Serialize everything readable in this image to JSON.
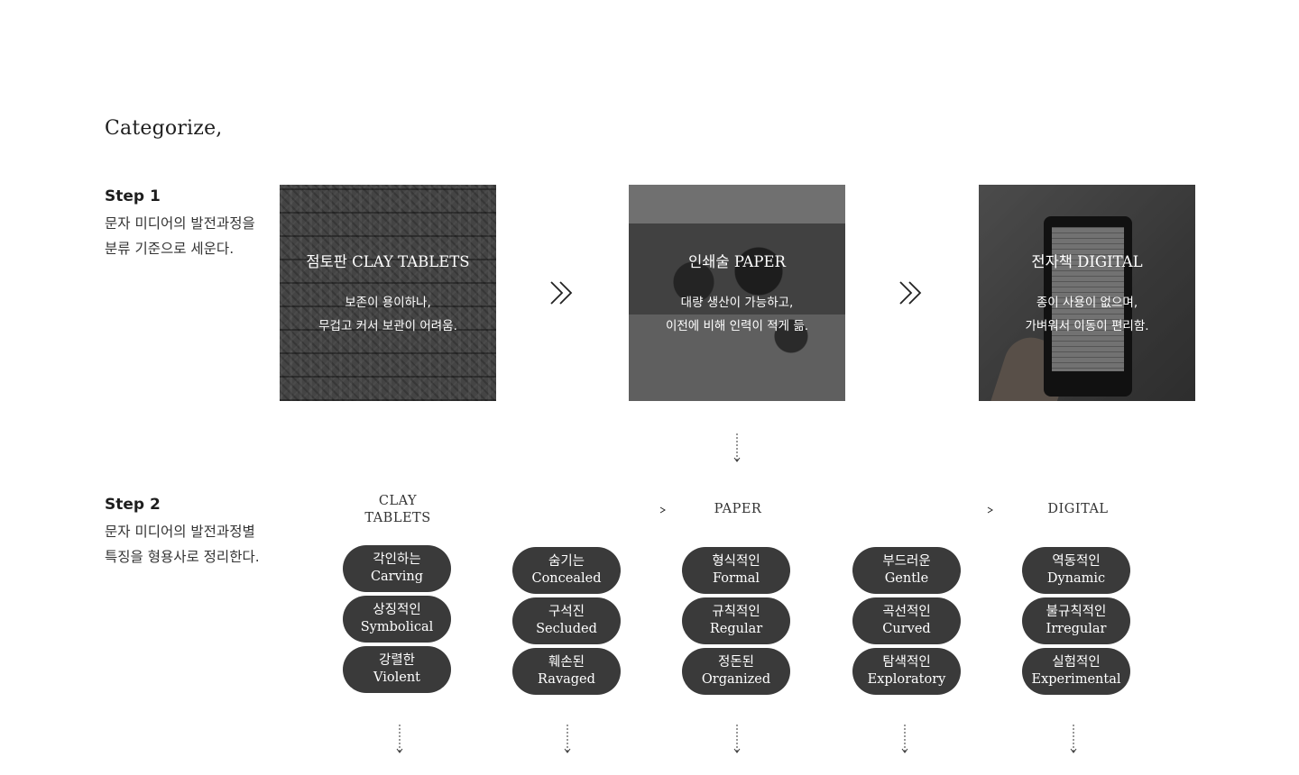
{
  "title": "Categorize,",
  "step1": {
    "label": "Step 1",
    "desc": "문자 미디어의 발전과정을\n분류 기준으로 세운다."
  },
  "step2": {
    "label": "Step 2",
    "desc": "문자 미디어의 발전과정별\n특징을 형용사로 정리한다."
  },
  "media": [
    {
      "name": "점토판 CLAY TABLETS",
      "desc": "보존이 용이하나,\n무겁고 커서 보관이 어려움."
    },
    {
      "name": "인쇄술 PAPER",
      "desc": "대량 생산이 가능하고,\n이전에 비해 인력이 적게 듦."
    },
    {
      "name": "전자책 DIGITAL",
      "desc": "종이 사용이 없으며,\n가벼워서 이동이 편리함."
    }
  ],
  "timeline": {
    "clay_line1": "CLAY",
    "clay_line2": "TABLETS",
    "paper": "PAPER",
    "digital": "DIGITAL"
  },
  "columns": [
    [
      {
        "ko": "각인하는",
        "en": "Carving"
      },
      {
        "ko": "상징적인",
        "en": "Symbolical"
      },
      {
        "ko": "강렬한",
        "en": "Violent"
      }
    ],
    [
      {
        "ko": "숨기는",
        "en": "Concealed"
      },
      {
        "ko": "구석진",
        "en": "Secluded"
      },
      {
        "ko": "훼손된",
        "en": "Ravaged"
      }
    ],
    [
      {
        "ko": "형식적인",
        "en": "Formal"
      },
      {
        "ko": "규칙적인",
        "en": "Regular"
      },
      {
        "ko": "정돈된",
        "en": "Organized"
      }
    ],
    [
      {
        "ko": "부드러운",
        "en": "Gentle"
      },
      {
        "ko": "곡선적인",
        "en": "Curved"
      },
      {
        "ko": "탐색적인",
        "en": "Exploratory"
      }
    ],
    [
      {
        "ko": "역동적인",
        "en": "Dynamic"
      },
      {
        "ko": "불규칙적인",
        "en": "Irregular"
      },
      {
        "ko": "실험적인",
        "en": "Experimental"
      }
    ]
  ],
  "icons": {
    "chevron": "double-chevron-right-icon",
    "down_arrow": "dotted-down-arrow-icon",
    "right_arrow": "right-arrow-line-icon"
  },
  "colors": {
    "pill_bg": "#3a3a3a",
    "text": "#1e1e1e"
  }
}
